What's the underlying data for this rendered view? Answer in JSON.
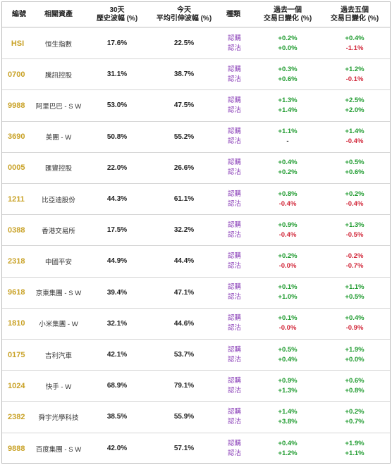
{
  "header": {
    "code": "編號",
    "asset": "相關資產",
    "hv_line1": "30天",
    "hv_line2": "歷史波幅 (%)",
    "iv_line1": "今天",
    "iv_line2": "平均引伸波幅 (%)",
    "type": "種類",
    "d1_line1": "過去一個",
    "d1_line2": "交易日變化 (%)",
    "d5_line1": "過去五個",
    "d5_line2": "交易日變化 (%)"
  },
  "colors": {
    "code": "#c9a227",
    "type": "#8a3fb8",
    "positive": "#1f9b2f",
    "negative": "#d2293b"
  },
  "rows": [
    {
      "code": "HSI",
      "asset": "恒生指數",
      "hv": "17.6%",
      "iv": "22.5%",
      "type1": "認購",
      "type2": "認沽",
      "d1a": "+0.2%",
      "d1b": "+0.0%",
      "d5a": "+0.4%",
      "d5b": "-1.1%"
    },
    {
      "code": "0700",
      "asset": "騰訊控股",
      "hv": "31.1%",
      "iv": "38.7%",
      "type1": "認購",
      "type2": "認沽",
      "d1a": "+0.3%",
      "d1b": "+0.6%",
      "d5a": "+1.2%",
      "d5b": "-0.1%"
    },
    {
      "code": "9988",
      "asset": "阿里巴巴 - S W",
      "hv": "53.0%",
      "iv": "47.5%",
      "type1": "認購",
      "type2": "認沽",
      "d1a": "+1.3%",
      "d1b": "+1.4%",
      "d5a": "+2.5%",
      "d5b": "+2.0%"
    },
    {
      "code": "3690",
      "asset": "美團 - W",
      "hv": "50.8%",
      "iv": "55.2%",
      "type1": "認購",
      "type2": "認沽",
      "d1a": "+1.1%",
      "d1b": "-",
      "d5a": "+1.4%",
      "d5b": "-0.4%"
    },
    {
      "code": "0005",
      "asset": "匯豐控股",
      "hv": "22.0%",
      "iv": "26.6%",
      "type1": "認購",
      "type2": "認沽",
      "d1a": "+0.4%",
      "d1b": "+0.2%",
      "d5a": "+0.5%",
      "d5b": "+0.6%"
    },
    {
      "code": "1211",
      "asset": "比亞迪股份",
      "hv": "44.3%",
      "iv": "61.1%",
      "type1": "認購",
      "type2": "認沽",
      "d1a": "+0.8%",
      "d1b": "-0.4%",
      "d5a": "+0.2%",
      "d5b": "-0.4%"
    },
    {
      "code": "0388",
      "asset": "香港交易所",
      "hv": "17.5%",
      "iv": "32.2%",
      "type1": "認購",
      "type2": "認沽",
      "d1a": "+0.9%",
      "d1b": "-0.4%",
      "d5a": "+1.3%",
      "d5b": "-0.5%"
    },
    {
      "code": "2318",
      "asset": "中國平安",
      "hv": "44.9%",
      "iv": "44.4%",
      "type1": "認購",
      "type2": "認沽",
      "d1a": "+0.2%",
      "d1b": "-0.0%",
      "d5a": "-0.2%",
      "d5b": "-0.7%"
    },
    {
      "code": "9618",
      "asset": "京東集團 - S W",
      "hv": "39.4%",
      "iv": "47.1%",
      "type1": "認購",
      "type2": "認沽",
      "d1a": "+0.1%",
      "d1b": "+1.0%",
      "d5a": "+1.1%",
      "d5b": "+0.5%"
    },
    {
      "code": "1810",
      "asset": "小米集團 - W",
      "hv": "32.1%",
      "iv": "44.6%",
      "type1": "認購",
      "type2": "認沽",
      "d1a": "+0.1%",
      "d1b": "-0.0%",
      "d5a": "+0.4%",
      "d5b": "-0.9%"
    },
    {
      "code": "0175",
      "asset": "吉利汽車",
      "hv": "42.1%",
      "iv": "53.7%",
      "type1": "認購",
      "type2": "認沽",
      "d1a": "+0.5%",
      "d1b": "+0.4%",
      "d5a": "+1.9%",
      "d5b": "+0.0%"
    },
    {
      "code": "1024",
      "asset": "快手 - W",
      "hv": "68.9%",
      "iv": "79.1%",
      "type1": "認購",
      "type2": "認沽",
      "d1a": "+0.9%",
      "d1b": "+1.3%",
      "d5a": "+0.6%",
      "d5b": "+0.8%"
    },
    {
      "code": "2382",
      "asset": "舜宇光學科技",
      "hv": "38.5%",
      "iv": "55.9%",
      "type1": "認購",
      "type2": "認沽",
      "d1a": "+1.4%",
      "d1b": "+3.8%",
      "d5a": "+0.2%",
      "d5b": "+0.7%"
    },
    {
      "code": "9888",
      "asset": "百度集團 - S W",
      "hv": "42.0%",
      "iv": "57.1%",
      "type1": "認購",
      "type2": "認沽",
      "d1a": "+0.4%",
      "d1b": "+1.2%",
      "d5a": "+1.9%",
      "d5b": "+1.1%"
    }
  ]
}
